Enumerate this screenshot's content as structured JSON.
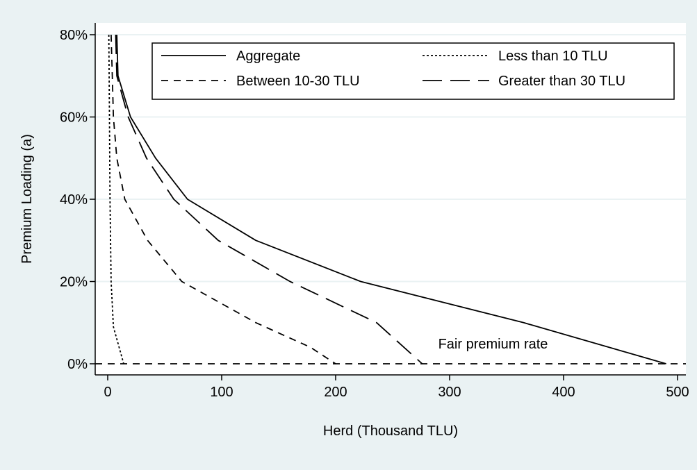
{
  "chart_data": {
    "type": "line",
    "title": "",
    "xlabel": "Herd (Thousand TLU)",
    "ylabel": "Premium Loading (a)",
    "xlim": [
      0,
      510
    ],
    "ylim": [
      0,
      0.8
    ],
    "xticks": [
      0,
      100,
      200,
      300,
      400,
      500
    ],
    "xtick_labels": [
      "0",
      "100",
      "200",
      "300",
      "400",
      "500"
    ],
    "yticks": [
      0,
      0.2,
      0.4,
      0.6,
      0.8
    ],
    "ytick_labels": [
      "0%",
      "20%",
      "40%",
      "60%",
      "80%"
    ],
    "grid": "horizontal",
    "legend_position": "top-right",
    "background_color": "#eaf2f3",
    "plot_background_color": "#ffffff",
    "grid_color": "#eaf2f3",
    "line_color": "#000000",
    "series": [
      {
        "name": "Aggregate",
        "style": "solid",
        "points": [
          [
            8,
            0.8
          ],
          [
            9,
            0.7
          ],
          [
            20,
            0.6
          ],
          [
            42,
            0.5
          ],
          [
            70,
            0.4
          ],
          [
            130,
            0.3
          ],
          [
            222,
            0.2
          ],
          [
            365,
            0.1
          ],
          [
            490,
            0.0
          ]
        ]
      },
      {
        "name": "Less than 10 TLU",
        "style": "dotted",
        "points": [
          [
            1,
            0.8
          ],
          [
            1.5,
            0.6
          ],
          [
            2,
            0.4
          ],
          [
            3,
            0.2
          ],
          [
            5,
            0.09
          ],
          [
            14,
            0.0
          ]
        ]
      },
      {
        "name": "Between 10-30 TLU",
        "style": "dashed",
        "points": [
          [
            3,
            0.8
          ],
          [
            4,
            0.7
          ],
          [
            5,
            0.6
          ],
          [
            8,
            0.5
          ],
          [
            15,
            0.4
          ],
          [
            35,
            0.3
          ],
          [
            65,
            0.2
          ],
          [
            130,
            0.1
          ],
          [
            178,
            0.04
          ],
          [
            200,
            0.0
          ]
        ]
      },
      {
        "name": "Greater than 30 TLU",
        "style": "longdash",
        "points": [
          [
            7,
            0.8
          ],
          [
            8,
            0.7
          ],
          [
            18,
            0.6
          ],
          [
            34,
            0.5
          ],
          [
            58,
            0.4
          ],
          [
            97,
            0.3
          ],
          [
            160,
            0.2
          ],
          [
            236,
            0.1
          ],
          [
            276,
            0.0
          ]
        ]
      }
    ],
    "reference_line": {
      "name": "Fair premium rate",
      "y": 0.0,
      "style": "dashed"
    },
    "annotation": {
      "text": "Fair premium rate",
      "x": 290,
      "y": 0.03
    }
  }
}
